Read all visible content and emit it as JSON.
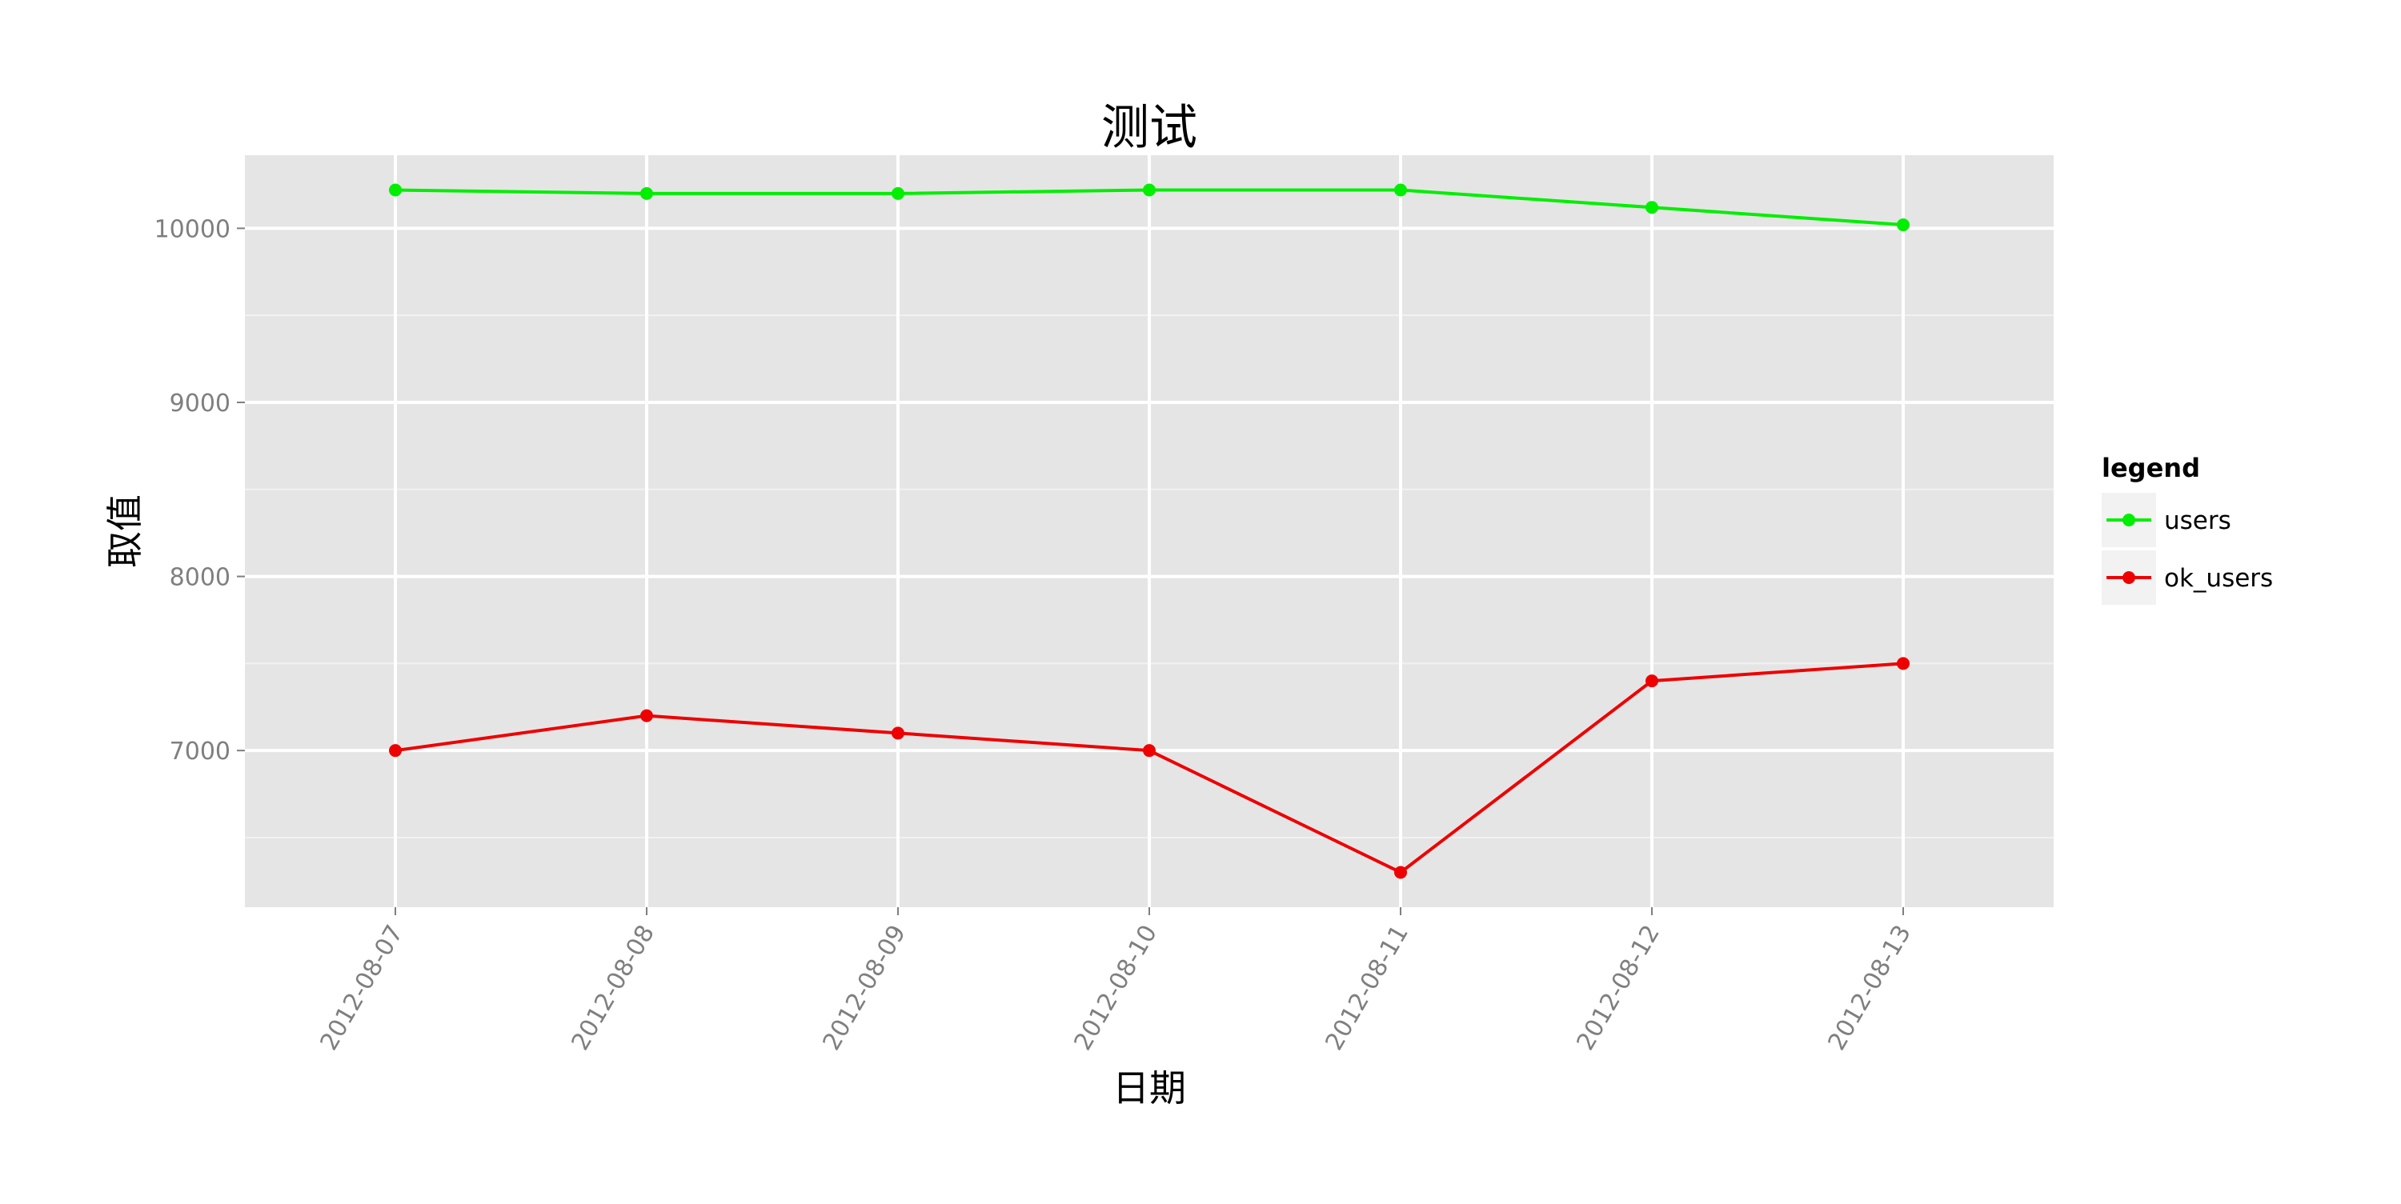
{
  "chart_data": {
    "type": "line",
    "title": "测试",
    "xlabel": "日期",
    "ylabel": "取值",
    "categories": [
      "2012-08-07",
      "2012-08-08",
      "2012-08-09",
      "2012-08-10",
      "2012-08-11",
      "2012-08-12",
      "2012-08-13"
    ],
    "yticks": [
      7000,
      8000,
      9000,
      10000
    ],
    "ylim": [
      6100,
      10420
    ],
    "grid": true,
    "legend": {
      "title": "legend",
      "position": "right",
      "entries": [
        "users",
        "ok_users"
      ]
    },
    "series": [
      {
        "name": "users",
        "color": "#00ee00",
        "values": [
          10220,
          10200,
          10200,
          10220,
          10220,
          10120,
          10020
        ]
      },
      {
        "name": "ok_users",
        "color": "#ee0000",
        "values": [
          7000,
          7200,
          7100,
          7000,
          6300,
          7400,
          7500
        ]
      }
    ]
  }
}
